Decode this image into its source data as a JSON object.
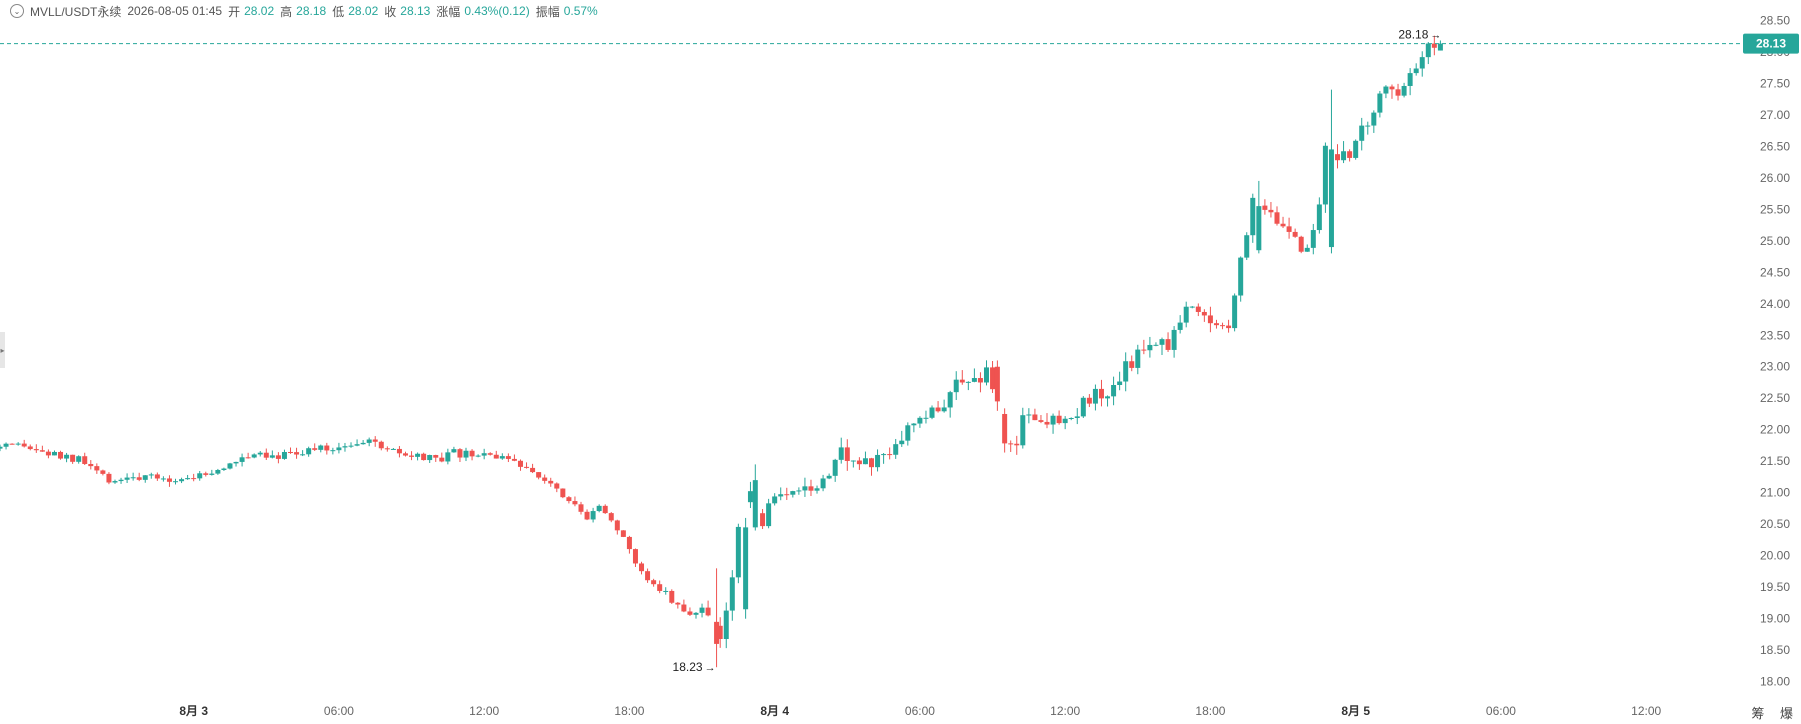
{
  "header": {
    "symbol": "MVLL/USDT永续",
    "datetime": "2026-08-05 01:45",
    "open_label": "开",
    "open": "28.02",
    "high_label": "高",
    "high": "28.18",
    "low_label": "低",
    "low": "28.02",
    "close_label": "收",
    "close": "28.13",
    "change_label": "涨幅",
    "change": "0.43%(0.12)",
    "amplitude_label": "振幅",
    "amplitude": "0.57%"
  },
  "price_badge": "28.13",
  "max_label": "28.18",
  "min_label": "18.23",
  "bottom_icons": [
    "筹",
    "爆"
  ],
  "colors": {
    "up": "#26a69a",
    "down": "#ef5350",
    "badge": "#26a69a",
    "axis_text": "#666666"
  },
  "chart_data": {
    "type": "candlestick",
    "y_ticks": [
      "28.50",
      "28.00",
      "27.50",
      "27.00",
      "26.50",
      "26.00",
      "25.50",
      "25.00",
      "24.50",
      "24.00",
      "23.50",
      "23.00",
      "22.50",
      "22.00",
      "21.50",
      "21.00",
      "20.50",
      "20.00",
      "19.50",
      "19.00",
      "18.50",
      "18.00"
    ],
    "ylim": [
      17.9,
      28.6
    ],
    "x_ticks": [
      {
        "t": 15,
        "label": "8月 3",
        "bold": true
      },
      {
        "t": 21,
        "label": "06:00"
      },
      {
        "t": 27,
        "label": "12:00"
      },
      {
        "t": 33,
        "label": "18:00"
      },
      {
        "t": 39,
        "label": "8月 4",
        "bold": true
      },
      {
        "t": 45,
        "label": "06:00"
      },
      {
        "t": 51,
        "label": "12:00"
      },
      {
        "t": 57,
        "label": "18:00"
      },
      {
        "t": 63,
        "label": "8月 5",
        "bold": true
      },
      {
        "t": 69,
        "label": "06:00"
      },
      {
        "t": 75,
        "label": "12:00"
      }
    ],
    "xlim": [
      7.0,
      79.0
    ],
    "last_price": 28.13,
    "extremes": {
      "max": 28.18,
      "min": 18.23
    },
    "anchors": [
      [
        7.0,
        21.7
      ],
      [
        8.2,
        21.72
      ],
      [
        9.4,
        21.6
      ],
      [
        10.6,
        21.5
      ],
      [
        11.2,
        21.35
      ],
      [
        11.6,
        21.2
      ],
      [
        12.8,
        21.25
      ],
      [
        14.0,
        21.2
      ],
      [
        15.2,
        21.25
      ],
      [
        16.4,
        21.35
      ],
      [
        17.6,
        21.65
      ],
      [
        18.8,
        21.6
      ],
      [
        20.0,
        21.68
      ],
      [
        21.0,
        21.7
      ],
      [
        21.6,
        21.8
      ],
      [
        22.4,
        21.8
      ],
      [
        23.2,
        21.72
      ],
      [
        24.0,
        21.55
      ],
      [
        24.8,
        21.55
      ],
      [
        25.4,
        21.5
      ],
      [
        26.0,
        21.62
      ],
      [
        26.8,
        21.58
      ],
      [
        27.6,
        21.62
      ],
      [
        28.4,
        21.45
      ],
      [
        29.2,
        21.4
      ],
      [
        30.2,
        21.1
      ],
      [
        30.8,
        20.9
      ],
      [
        31.4,
        20.6
      ],
      [
        32.0,
        20.85
      ],
      [
        32.6,
        20.5
      ],
      [
        33.2,
        20.1
      ],
      [
        33.8,
        19.7
      ],
      [
        34.4,
        19.55
      ],
      [
        35.0,
        19.3
      ],
      [
        35.6,
        19.05
      ],
      [
        36.2,
        19.2
      ],
      [
        36.6,
        19.0
      ],
      [
        37.0,
        18.7
      ],
      [
        37.4,
        19.3
      ],
      [
        37.8,
        20.5
      ],
      [
        38.2,
        21.2
      ],
      [
        38.6,
        20.5
      ],
      [
        39.4,
        20.9
      ],
      [
        40.2,
        20.9
      ],
      [
        40.8,
        21.1
      ],
      [
        41.4,
        21.3
      ],
      [
        42.0,
        21.8
      ],
      [
        42.4,
        21.5
      ],
      [
        43.0,
        21.45
      ],
      [
        43.6,
        21.5
      ],
      [
        44.2,
        21.85
      ],
      [
        45.0,
        22.05
      ],
      [
        45.8,
        22.25
      ],
      [
        46.6,
        22.65
      ],
      [
        47.2,
        22.7
      ],
      [
        48.0,
        22.95
      ],
      [
        48.4,
        22.4
      ],
      [
        48.8,
        21.8
      ],
      [
        49.2,
        21.7
      ],
      [
        49.6,
        22.4
      ],
      [
        50.2,
        22.05
      ],
      [
        50.8,
        22.2
      ],
      [
        51.6,
        22.3
      ],
      [
        52.4,
        22.55
      ],
      [
        53.0,
        22.4
      ],
      [
        53.8,
        23.05
      ],
      [
        54.6,
        23.3
      ],
      [
        55.2,
        23.55
      ],
      [
        55.6,
        23.35
      ],
      [
        56.2,
        24.05
      ],
      [
        56.8,
        23.85
      ],
      [
        57.4,
        23.6
      ],
      [
        58.0,
        23.75
      ],
      [
        58.6,
        24.8
      ],
      [
        59.0,
        25.6
      ],
      [
        59.6,
        25.5
      ],
      [
        60.4,
        25.2
      ],
      [
        61.2,
        24.75
      ],
      [
        61.6,
        25.2
      ],
      [
        62.0,
        26.5
      ],
      [
        62.4,
        26.3
      ],
      [
        63.0,
        26.35
      ],
      [
        63.4,
        26.7
      ],
      [
        63.8,
        27.0
      ],
      [
        64.2,
        27.2
      ],
      [
        64.6,
        27.45
      ],
      [
        65.0,
        27.3
      ],
      [
        65.4,
        27.7
      ],
      [
        65.8,
        27.9
      ],
      [
        66.2,
        28.02
      ],
      [
        66.5,
        28.13
      ]
    ],
    "big_moves": [
      {
        "t": 62.0,
        "open": 24.9,
        "close": 26.45,
        "high": 27.4,
        "low": 24.8
      },
      {
        "t": 59.0,
        "open": 24.85,
        "close": 25.55,
        "high": 25.95,
        "low": 24.8
      },
      {
        "t": 48.2,
        "open": 23.0,
        "close": 22.45,
        "high": 23.1,
        "low": 22.3
      },
      {
        "t": 37.8,
        "open": 19.15,
        "close": 20.45,
        "high": 20.6,
        "low": 19.0
      },
      {
        "t": 38.2,
        "open": 20.45,
        "close": 21.2,
        "high": 21.45,
        "low": 20.4
      },
      {
        "t": 36.6,
        "open": 18.95,
        "close": 18.6,
        "high": 19.8,
        "low": 18.23
      },
      {
        "t": 66.5,
        "open": 28.02,
        "close": 28.13,
        "high": 28.18,
        "low": 28.02
      }
    ]
  }
}
